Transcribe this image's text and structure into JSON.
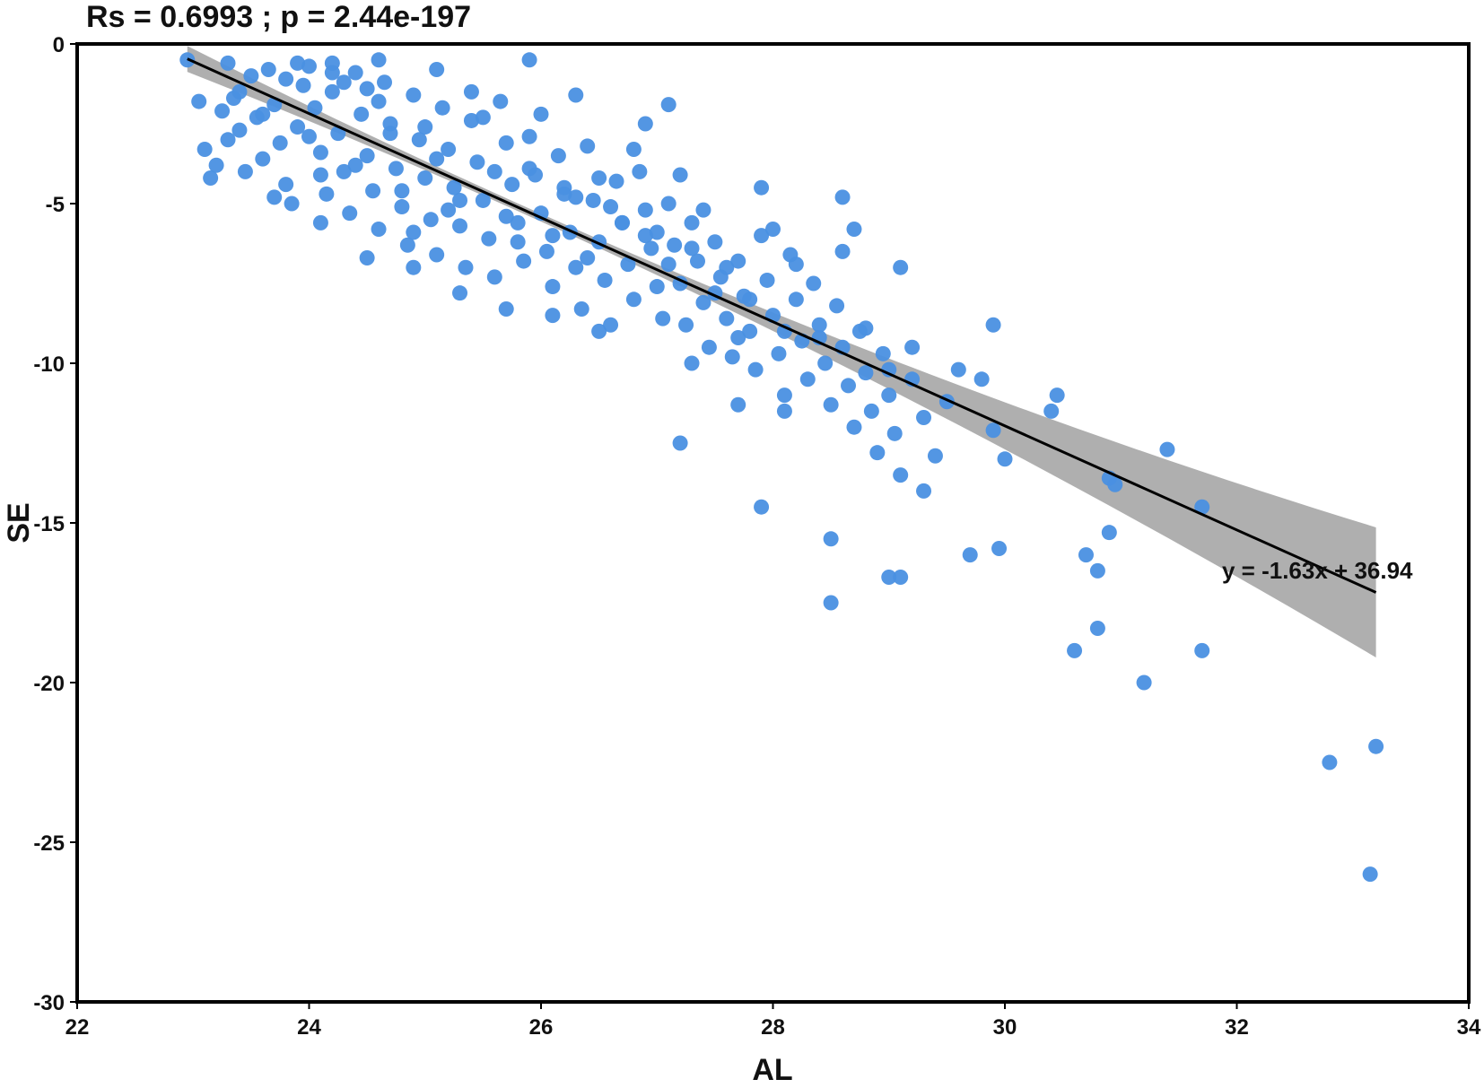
{
  "chart_data": {
    "type": "scatter",
    "title": "Rs = 0.6993 ; p = 2.44e-197",
    "xlabel": "AL",
    "ylabel": "SE",
    "xlim": [
      22,
      34
    ],
    "ylim": [
      -30,
      0
    ],
    "xticks": [
      22,
      24,
      26,
      28,
      30,
      32,
      34
    ],
    "yticks": [
      0,
      -5,
      -10,
      -15,
      -20,
      -25,
      -30
    ],
    "grid": false,
    "legend": "none",
    "point_color": "#4a90e2",
    "fit_color": "#000000",
    "band_color": "#a6a6a6",
    "fit": {
      "slope": -1.63,
      "intercept": 36.94,
      "x_range": [
        22.95,
        33.2
      ]
    },
    "annotation": "y = -1.63x + 36.94",
    "series": [
      {
        "points": [
          [
            22.95,
            -0.5
          ],
          [
            23.05,
            -1.8
          ],
          [
            23.1,
            -3.3
          ],
          [
            23.15,
            -4.2
          ],
          [
            23.2,
            -3.8
          ],
          [
            23.25,
            -2.1
          ],
          [
            23.3,
            -0.6
          ],
          [
            23.35,
            -1.7
          ],
          [
            23.4,
            -2.7
          ],
          [
            23.45,
            -4.0
          ],
          [
            23.5,
            -1.0
          ],
          [
            23.55,
            -2.3
          ],
          [
            23.6,
            -3.6
          ],
          [
            23.65,
            -0.8
          ],
          [
            23.7,
            -1.9
          ],
          [
            23.75,
            -3.1
          ],
          [
            23.8,
            -4.4
          ],
          [
            23.85,
            -5.0
          ],
          [
            23.9,
            -2.6
          ],
          [
            23.95,
            -1.3
          ],
          [
            24.0,
            -0.7
          ],
          [
            24.05,
            -2.0
          ],
          [
            24.1,
            -3.4
          ],
          [
            24.15,
            -4.7
          ],
          [
            24.2,
            -1.5
          ],
          [
            24.25,
            -2.8
          ],
          [
            24.3,
            -4.0
          ],
          [
            24.35,
            -5.3
          ],
          [
            24.4,
            -0.9
          ],
          [
            24.45,
            -2.2
          ],
          [
            24.5,
            -3.5
          ],
          [
            24.55,
            -4.6
          ],
          [
            24.6,
            -5.8
          ],
          [
            24.65,
            -1.2
          ],
          [
            24.7,
            -2.5
          ],
          [
            24.75,
            -3.9
          ],
          [
            24.8,
            -5.1
          ],
          [
            24.85,
            -6.3
          ],
          [
            24.9,
            -1.6
          ],
          [
            24.95,
            -3.0
          ],
          [
            25.0,
            -4.2
          ],
          [
            25.05,
            -5.5
          ],
          [
            25.1,
            -6.6
          ],
          [
            25.15,
            -2.0
          ],
          [
            25.2,
            -3.3
          ],
          [
            25.25,
            -4.5
          ],
          [
            25.3,
            -5.7
          ],
          [
            25.35,
            -7.0
          ],
          [
            25.4,
            -2.4
          ],
          [
            25.45,
            -3.7
          ],
          [
            25.5,
            -4.9
          ],
          [
            25.55,
            -6.1
          ],
          [
            25.6,
            -7.3
          ],
          [
            25.65,
            -1.8
          ],
          [
            25.7,
            -3.1
          ],
          [
            25.75,
            -4.4
          ],
          [
            25.8,
            -5.6
          ],
          [
            25.85,
            -6.8
          ],
          [
            25.9,
            -2.9
          ],
          [
            25.95,
            -4.1
          ],
          [
            26.0,
            -5.3
          ],
          [
            26.05,
            -6.5
          ],
          [
            26.1,
            -7.6
          ],
          [
            26.15,
            -3.5
          ],
          [
            26.2,
            -4.7
          ],
          [
            26.25,
            -5.9
          ],
          [
            26.3,
            -7.0
          ],
          [
            26.35,
            -8.3
          ],
          [
            26.4,
            -3.2
          ],
          [
            26.45,
            -4.9
          ],
          [
            26.5,
            -6.2
          ],
          [
            26.55,
            -7.4
          ],
          [
            26.6,
            -8.8
          ],
          [
            26.65,
            -4.3
          ],
          [
            26.7,
            -5.6
          ],
          [
            26.75,
            -6.9
          ],
          [
            26.8,
            -8.0
          ],
          [
            26.85,
            -4.0
          ],
          [
            26.9,
            -5.2
          ],
          [
            26.95,
            -6.4
          ],
          [
            27.0,
            -7.6
          ],
          [
            27.05,
            -8.6
          ],
          [
            27.1,
            -5.0
          ],
          [
            27.15,
            -6.3
          ],
          [
            27.2,
            -7.5
          ],
          [
            27.25,
            -8.8
          ],
          [
            27.3,
            -5.6
          ],
          [
            27.35,
            -6.8
          ],
          [
            27.4,
            -8.1
          ],
          [
            27.45,
            -9.5
          ],
          [
            27.5,
            -6.2
          ],
          [
            27.55,
            -7.3
          ],
          [
            27.6,
            -8.6
          ],
          [
            27.65,
            -9.8
          ],
          [
            27.7,
            -6.8
          ],
          [
            27.75,
            -7.9
          ],
          [
            27.8,
            -9.0
          ],
          [
            27.85,
            -10.2
          ],
          [
            27.9,
            -6.0
          ],
          [
            27.95,
            -7.4
          ],
          [
            28.0,
            -8.5
          ],
          [
            28.05,
            -9.7
          ],
          [
            28.1,
            -11.0
          ],
          [
            28.15,
            -6.6
          ],
          [
            28.2,
            -8.0
          ],
          [
            28.25,
            -9.3
          ],
          [
            28.3,
            -10.5
          ],
          [
            28.35,
            -7.5
          ],
          [
            28.4,
            -8.8
          ],
          [
            28.45,
            -10.0
          ],
          [
            28.5,
            -11.3
          ],
          [
            28.55,
            -8.2
          ],
          [
            28.6,
            -9.5
          ],
          [
            28.65,
            -10.7
          ],
          [
            28.7,
            -12.0
          ],
          [
            28.75,
            -9.0
          ],
          [
            28.8,
            -10.3
          ],
          [
            28.85,
            -11.5
          ],
          [
            28.9,
            -12.8
          ],
          [
            28.95,
            -9.7
          ],
          [
            29.0,
            -11.0
          ],
          [
            29.05,
            -12.2
          ],
          [
            29.1,
            -13.5
          ],
          [
            29.2,
            -10.5
          ],
          [
            29.3,
            -11.7
          ],
          [
            29.4,
            -12.9
          ],
          [
            29.5,
            -11.2
          ],
          [
            29.6,
            -10.2
          ],
          [
            29.8,
            -10.5
          ],
          [
            29.9,
            -12.1
          ],
          [
            30.0,
            -13.0
          ],
          [
            30.4,
            -11.5
          ],
          [
            30.45,
            -11.0
          ],
          [
            30.9,
            -13.6
          ],
          [
            30.95,
            -13.8
          ],
          [
            31.4,
            -12.7
          ],
          [
            31.7,
            -14.5
          ],
          [
            23.4,
            -1.5
          ],
          [
            23.6,
            -2.2
          ],
          [
            23.8,
            -1.1
          ],
          [
            24.0,
            -2.9
          ],
          [
            24.2,
            -0.9
          ],
          [
            24.4,
            -3.8
          ],
          [
            24.6,
            -1.8
          ],
          [
            24.8,
            -4.6
          ],
          [
            25.0,
            -2.6
          ],
          [
            25.2,
            -5.2
          ],
          [
            25.4,
            -1.5
          ],
          [
            25.6,
            -4.0
          ],
          [
            25.8,
            -6.2
          ],
          [
            26.0,
            -2.2
          ],
          [
            26.2,
            -4.5
          ],
          [
            26.4,
            -6.7
          ],
          [
            26.6,
            -5.1
          ],
          [
            26.8,
            -3.3
          ],
          [
            27.0,
            -5.9
          ],
          [
            27.2,
            -4.1
          ],
          [
            27.4,
            -5.2
          ],
          [
            27.6,
            -7.0
          ],
          [
            27.8,
            -8.0
          ],
          [
            28.0,
            -5.8
          ],
          [
            28.2,
            -6.9
          ],
          [
            28.4,
            -9.2
          ],
          [
            28.6,
            -6.5
          ],
          [
            28.8,
            -8.9
          ],
          [
            29.0,
            -10.2
          ],
          [
            29.2,
            -9.5
          ],
          [
            23.3,
            -3.0
          ],
          [
            23.7,
            -4.8
          ],
          [
            24.1,
            -5.6
          ],
          [
            24.5,
            -6.7
          ],
          [
            24.9,
            -7.0
          ],
          [
            25.3,
            -7.8
          ],
          [
            25.7,
            -8.3
          ],
          [
            26.1,
            -8.5
          ],
          [
            26.5,
            -9.0
          ],
          [
            26.9,
            -2.5
          ],
          [
            27.1,
            -1.9
          ],
          [
            27.3,
            -10.0
          ],
          [
            27.7,
            -11.3
          ],
          [
            28.1,
            -11.5
          ],
          [
            29.3,
            -14.0
          ],
          [
            29.1,
            -7.0
          ],
          [
            29.9,
            -8.8
          ],
          [
            28.6,
            -4.8
          ],
          [
            28.7,
            -5.8
          ],
          [
            27.9,
            -4.5
          ],
          [
            25.9,
            -0.5
          ],
          [
            24.6,
            -0.5
          ],
          [
            25.1,
            -0.8
          ],
          [
            24.2,
            -0.6
          ],
          [
            23.9,
            -0.6
          ],
          [
            26.3,
            -1.6
          ],
          [
            27.2,
            -12.5
          ],
          [
            27.9,
            -14.5
          ],
          [
            28.5,
            -15.5
          ],
          [
            28.5,
            -17.5
          ],
          [
            29.0,
            -16.7
          ],
          [
            29.1,
            -16.7
          ],
          [
            29.7,
            -16.0
          ],
          [
            29.95,
            -15.8
          ],
          [
            30.6,
            -19.0
          ],
          [
            30.7,
            -16.0
          ],
          [
            30.8,
            -16.5
          ],
          [
            30.8,
            -18.3
          ],
          [
            30.9,
            -15.3
          ],
          [
            31.2,
            -20.0
          ],
          [
            31.7,
            -19.0
          ],
          [
            32.8,
            -22.5
          ],
          [
            33.2,
            -22.0
          ],
          [
            33.15,
            -26.0
          ],
          [
            24.3,
            -1.2
          ],
          [
            24.7,
            -2.8
          ],
          [
            25.1,
            -3.6
          ],
          [
            25.5,
            -2.3
          ],
          [
            25.9,
            -3.9
          ],
          [
            26.3,
            -4.8
          ],
          [
            26.7,
            -5.6
          ],
          [
            27.1,
            -6.9
          ],
          [
            27.5,
            -7.8
          ],
          [
            24.1,
            -4.1
          ],
          [
            24.5,
            -1.4
          ],
          [
            24.9,
            -5.9
          ],
          [
            25.3,
            -4.9
          ],
          [
            25.7,
            -5.4
          ],
          [
            26.1,
            -6.0
          ],
          [
            26.5,
            -4.2
          ],
          [
            26.9,
            -6.0
          ],
          [
            27.3,
            -6.4
          ],
          [
            27.7,
            -9.2
          ],
          [
            28.1,
            -9.0
          ]
        ]
      }
    ]
  }
}
